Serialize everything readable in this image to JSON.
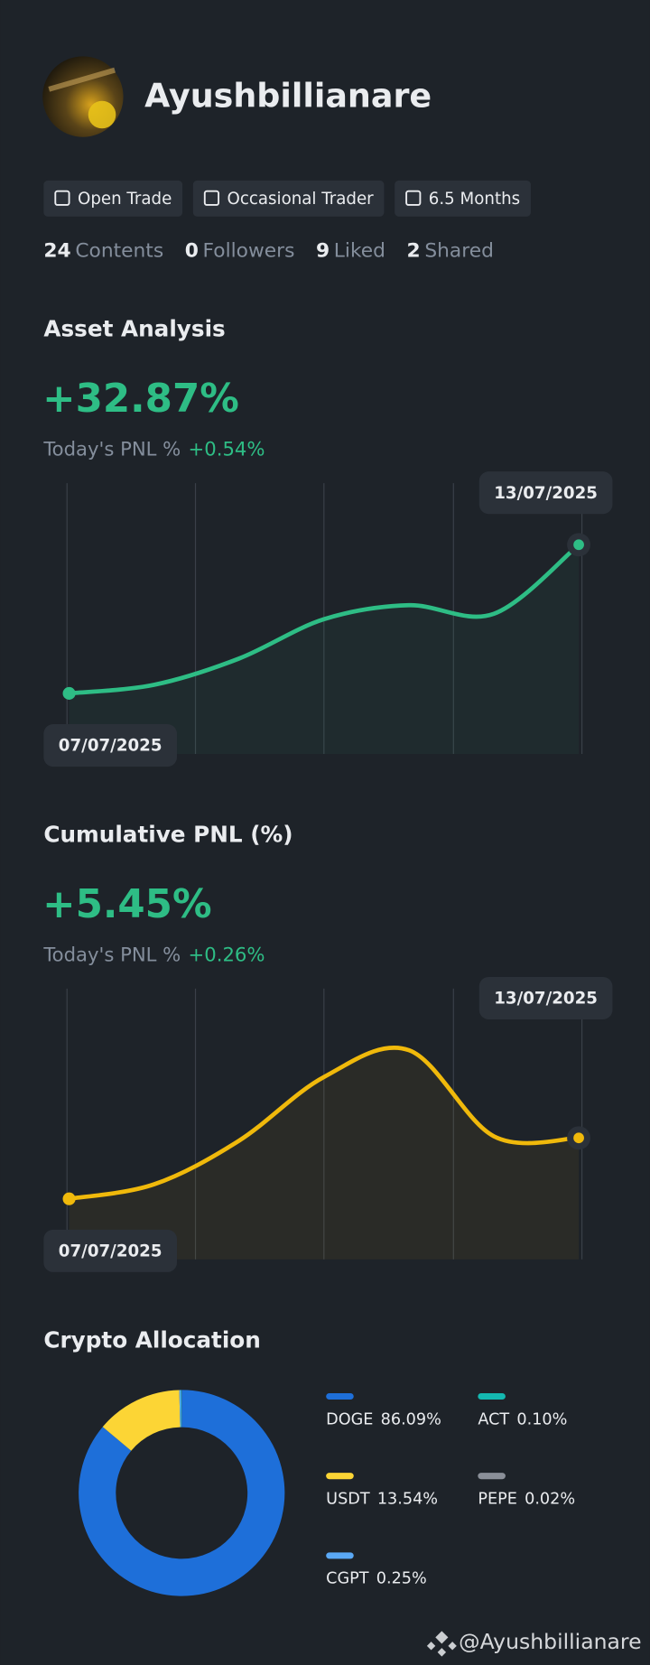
{
  "profile": {
    "name": "Ayushbillianare",
    "tags": [
      "Open Trade",
      "Occasional Trader",
      "6.5 Months"
    ],
    "stats": [
      {
        "count": "24",
        "label": "Contents"
      },
      {
        "count": "0",
        "label": "Followers"
      },
      {
        "count": "9",
        "label": "Liked"
      },
      {
        "count": "2",
        "label": "Shared"
      }
    ]
  },
  "chart_data": [
    {
      "type": "line",
      "title": "Asset Analysis",
      "headline": "+32.87%",
      "today_label": "Today's PNL %",
      "today_value": "+0.54%",
      "x": [
        "07/07/2025",
        null,
        null,
        null,
        null,
        null,
        "13/07/2025"
      ],
      "series": [
        {
          "color": "#2ebd85",
          "values": [
            0,
            1.9,
            7.7,
            16.4,
            19.5,
            17.6,
            32.87
          ]
        }
      ]
    },
    {
      "type": "line",
      "title": "Cumulative PNL (%)",
      "headline": "+5.45%",
      "today_label": "Today's PNL %",
      "today_value": "+0.26%",
      "x": [
        "07/07/2025",
        null,
        null,
        null,
        null,
        null,
        "13/07/2025"
      ],
      "series": [
        {
          "color": "#f0b90b",
          "values": [
            0,
            1.3,
            5.2,
            10.9,
            13.3,
            5.6,
            5.45
          ]
        }
      ]
    },
    {
      "type": "pie",
      "title": "Crypto Allocation",
      "categories": [
        "DOGE",
        "USDT",
        "CGPT",
        "ACT",
        "PEPE"
      ],
      "values": [
        86.09,
        13.54,
        0.25,
        0.1,
        0.02
      ],
      "value_labels": [
        "86.09%",
        "13.54%",
        "0.25%",
        "0.10%",
        "0.02%"
      ],
      "colors": [
        "#1e6fd9",
        "#fcd535",
        "#5aa8f5",
        "#14b8b0",
        "#8a8f98"
      ]
    }
  ],
  "watermark": "@Ayushbillianare"
}
